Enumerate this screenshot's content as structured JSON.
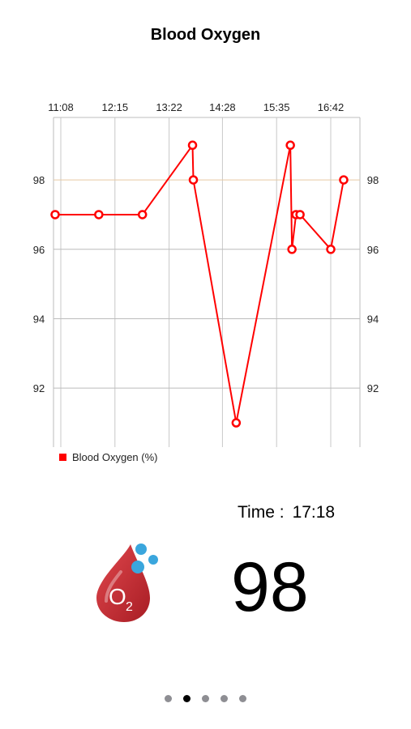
{
  "page": {
    "title": "Blood Oxygen"
  },
  "chart_data": {
    "type": "line",
    "x_tick_labels": [
      "11:08",
      "12:15",
      "13:22",
      "14:28",
      "15:35",
      "16:42"
    ],
    "y_tick_labels": [
      "92",
      "94",
      "96",
      "98"
    ],
    "ylim": [
      90.3,
      99.8
    ],
    "reference_line": 98,
    "series": [
      {
        "name": "Blood Oxygen (%)",
        "color": "#ff0000",
        "x": [
          "11:01",
          "11:55",
          "12:49",
          "13:51",
          "13:52",
          "14:45",
          "15:52",
          "15:54",
          "15:59",
          "16:04",
          "16:42",
          "16:58"
        ],
        "values": [
          97,
          97,
          97,
          99,
          98,
          91,
          99,
          96,
          97,
          97,
          96,
          98
        ]
      }
    ]
  },
  "legend": {
    "label": "Blood Oxygen (%)"
  },
  "reading": {
    "time_label": "Time :",
    "time_value": "17:18",
    "value": "98"
  },
  "icon": {
    "name": "o2-blood-drop-icon",
    "text": "O",
    "subscript": "2",
    "drop_color": "#c0262d",
    "bubble_color": "#3aa6dd"
  },
  "pager": {
    "count": 5,
    "active_index": 1
  }
}
